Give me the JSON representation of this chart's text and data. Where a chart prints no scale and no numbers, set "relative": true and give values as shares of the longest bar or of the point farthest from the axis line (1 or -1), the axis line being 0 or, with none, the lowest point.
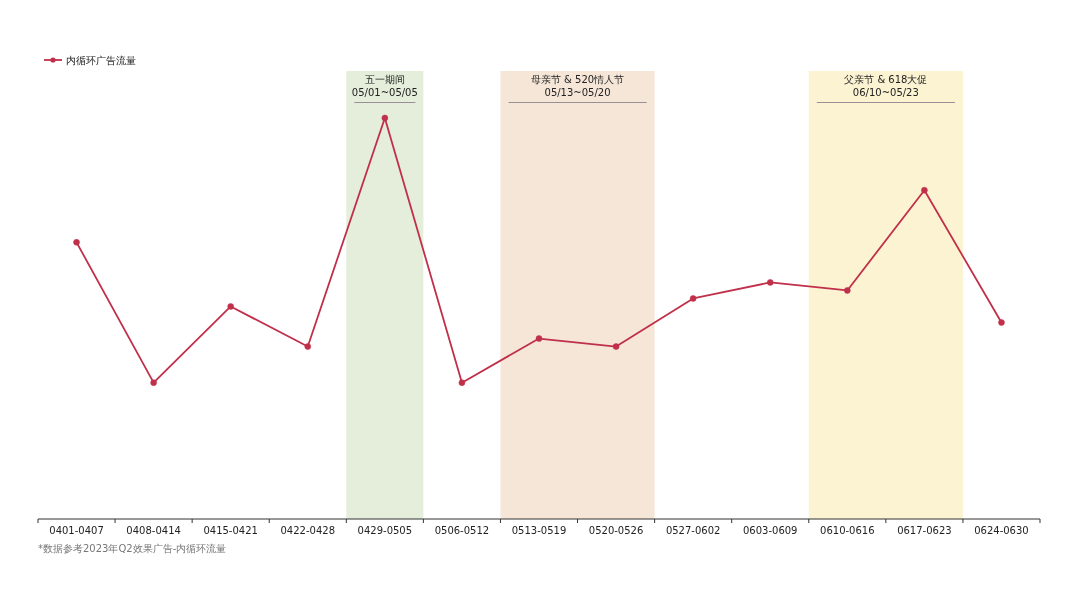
{
  "chart_data": {
    "type": "line",
    "relative": true,
    "legend": "top left",
    "marker": "circle",
    "line_style": "solid",
    "grid": false,
    "categories": [
      "0401-0407",
      "0408-0414",
      "0415-0421",
      "0422-0428",
      "0429-0505",
      "0506-0512",
      "0513-0519",
      "0520-0526",
      "0527-0602",
      "0603-0609",
      "0610-0616",
      "0617-0623",
      "0624-0630"
    ],
    "series": [
      {
        "name": "内循环广告流量",
        "color": "#c0304a",
        "values": [
          0.69,
          0.34,
          0.53,
          0.43,
          1,
          0.34,
          0.45,
          0.43,
          0.55,
          0.59,
          0.57,
          0.82,
          0.49
        ]
      }
    ],
    "bands": [
      {
        "axis": "x",
        "from": "0429-0505",
        "to": "0429-0505",
        "label": "五一期间\n05/01~05/05",
        "color": "#e4eedb"
      },
      {
        "axis": "x",
        "from": "0513-0519",
        "to": "0520-0526",
        "label": "母亲节 & 520情人节\n05/13~05/20",
        "color": "#f5e6d8"
      },
      {
        "axis": "x",
        "from": "0610-0616",
        "to": "0617-0623",
        "label": "父亲节 & 618大促\n06/10~05/23",
        "color": "#fcf3d2"
      }
    ],
    "annotations": [
      "*数据参考2023年Q2效果广告-内循环流量"
    ]
  }
}
